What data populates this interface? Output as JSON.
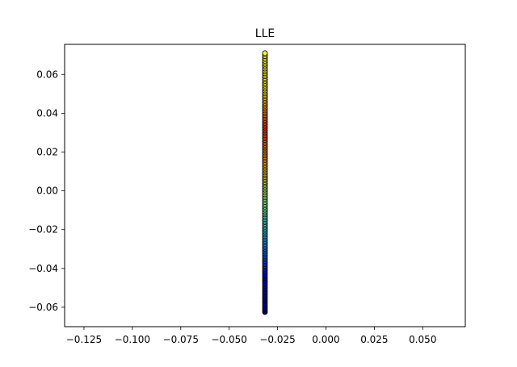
{
  "chart_data": {
    "type": "scatter",
    "title": "LLE",
    "xlabel": "",
    "ylabel": "",
    "xlim": [
      -0.135,
      0.072
    ],
    "ylim": [
      -0.07,
      0.0755
    ],
    "xticks": [
      -0.125,
      -0.1,
      -0.075,
      -0.05,
      -0.025,
      0.0,
      0.025,
      0.05
    ],
    "xtick_labels": [
      "−0.125",
      "−0.100",
      "−0.075",
      "−0.050",
      "−0.025",
      "0.000",
      "0.025",
      "0.050"
    ],
    "yticks": [
      -0.06,
      -0.04,
      -0.02,
      0.0,
      0.02,
      0.04,
      0.06
    ],
    "ytick_labels": [
      "−0.06",
      "−0.04",
      "−0.02",
      "0.00",
      "0.02",
      "0.04",
      "0.06"
    ],
    "grid": false,
    "marker_edge_color": "#000000",
    "colormap": [
      "#00008f",
      "#0000ff",
      "#00aaff",
      "#7fff7f",
      "#ffaa00",
      "#ff3300",
      "#ffee00",
      "#ffff00"
    ],
    "x_constant": -0.0315,
    "y_values": [
      -0.0625,
      -0.0618,
      -0.061,
      -0.0602,
      -0.0594,
      -0.0586,
      -0.0578,
      -0.057,
      -0.0562,
      -0.0554,
      -0.0546,
      -0.0538,
      -0.053,
      -0.0522,
      -0.0514,
      -0.0506,
      -0.0498,
      -0.049,
      -0.0482,
      -0.0474,
      -0.0466,
      -0.0458,
      -0.045,
      -0.0442,
      -0.0434,
      -0.0426,
      -0.0418,
      -0.041,
      -0.0402,
      -0.0394,
      -0.0386,
      -0.0378,
      -0.037,
      -0.0362,
      -0.0354,
      -0.0346,
      -0.0338,
      -0.033,
      -0.0322,
      -0.0314,
      -0.0306,
      -0.0298,
      -0.029,
      -0.0282,
      -0.0274,
      -0.0266,
      -0.0258,
      -0.025,
      -0.0242,
      -0.0234,
      -0.0226,
      -0.0218,
      -0.021,
      -0.0202,
      -0.0194,
      -0.0186,
      -0.0178,
      -0.017,
      -0.0162,
      -0.0154,
      -0.0146,
      -0.0138,
      -0.013,
      -0.0122,
      -0.0114,
      -0.0106,
      -0.0098,
      -0.009,
      -0.0082,
      -0.0074,
      -0.0066,
      -0.0058,
      -0.005,
      -0.0042,
      -0.0034,
      -0.0026,
      -0.0018,
      -0.001,
      -0.0002,
      0.0006,
      0.0014,
      0.0022,
      0.003,
      0.0038,
      0.0046,
      0.0054,
      0.0062,
      0.007,
      0.0078,
      0.0086,
      0.0094,
      0.0102,
      0.011,
      0.0118,
      0.0126,
      0.0134,
      0.0142,
      0.015,
      0.0158,
      0.0166,
      0.0174,
      0.0182,
      0.019,
      0.0198,
      0.0206,
      0.0214,
      0.0222,
      0.023,
      0.0238,
      0.0246,
      0.0254,
      0.0262,
      0.027,
      0.0278,
      0.0286,
      0.0294,
      0.0302,
      0.031,
      0.0318,
      0.0326,
      0.0334,
      0.0342,
      0.035,
      0.0358,
      0.0366,
      0.0374,
      0.0382,
      0.039,
      0.0398,
      0.0406,
      0.0414,
      0.0422,
      0.043,
      0.0438,
      0.0446,
      0.0454,
      0.0462,
      0.047,
      0.0478,
      0.0486,
      0.0494,
      0.0502,
      0.051,
      0.0518,
      0.0526,
      0.0534,
      0.0542,
      0.055,
      0.0558,
      0.0566,
      0.0574,
      0.0582,
      0.059,
      0.0598,
      0.0606,
      0.0614,
      0.0622,
      0.063,
      0.0638,
      0.0646,
      0.0654,
      0.0662,
      0.067,
      0.0678,
      0.0686,
      0.0694,
      0.0702,
      0.071
    ]
  }
}
